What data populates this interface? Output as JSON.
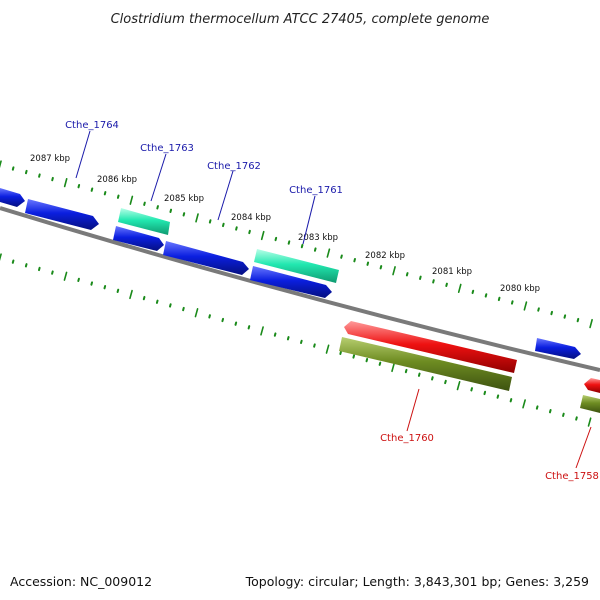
{
  "title": "Clostridium thermocellum ATCC 27405, complete genome",
  "footer": {
    "accession": "Accession: NC_009012",
    "summary": "Topology: circular; Length: 3,843,301 bp; Genes: 3,259"
  },
  "scale_labels": [
    "2087 kbp",
    "2086 kbp",
    "2085 kbp",
    "2084 kbp",
    "2083 kbp",
    "2082 kbp",
    "2081 kbp",
    "2080 kbp"
  ],
  "gene_labels": {
    "forward": [
      "Cthe_1764",
      "Cthe_1763",
      "Cthe_1762",
      "Cthe_1761"
    ],
    "reverse": [
      "Cthe_1760",
      "Cthe_1758"
    ]
  },
  "colors": {
    "backbone": "#777777",
    "ticks": "#1a8a1a",
    "forward_label": "#1a1aaa",
    "reverse_label": "#cc1111",
    "blue_gene": "#0b1fe0",
    "teal_gene": "#22e8b0",
    "red_gene": "#ee1111",
    "olive_gene": "#6e8c22"
  }
}
